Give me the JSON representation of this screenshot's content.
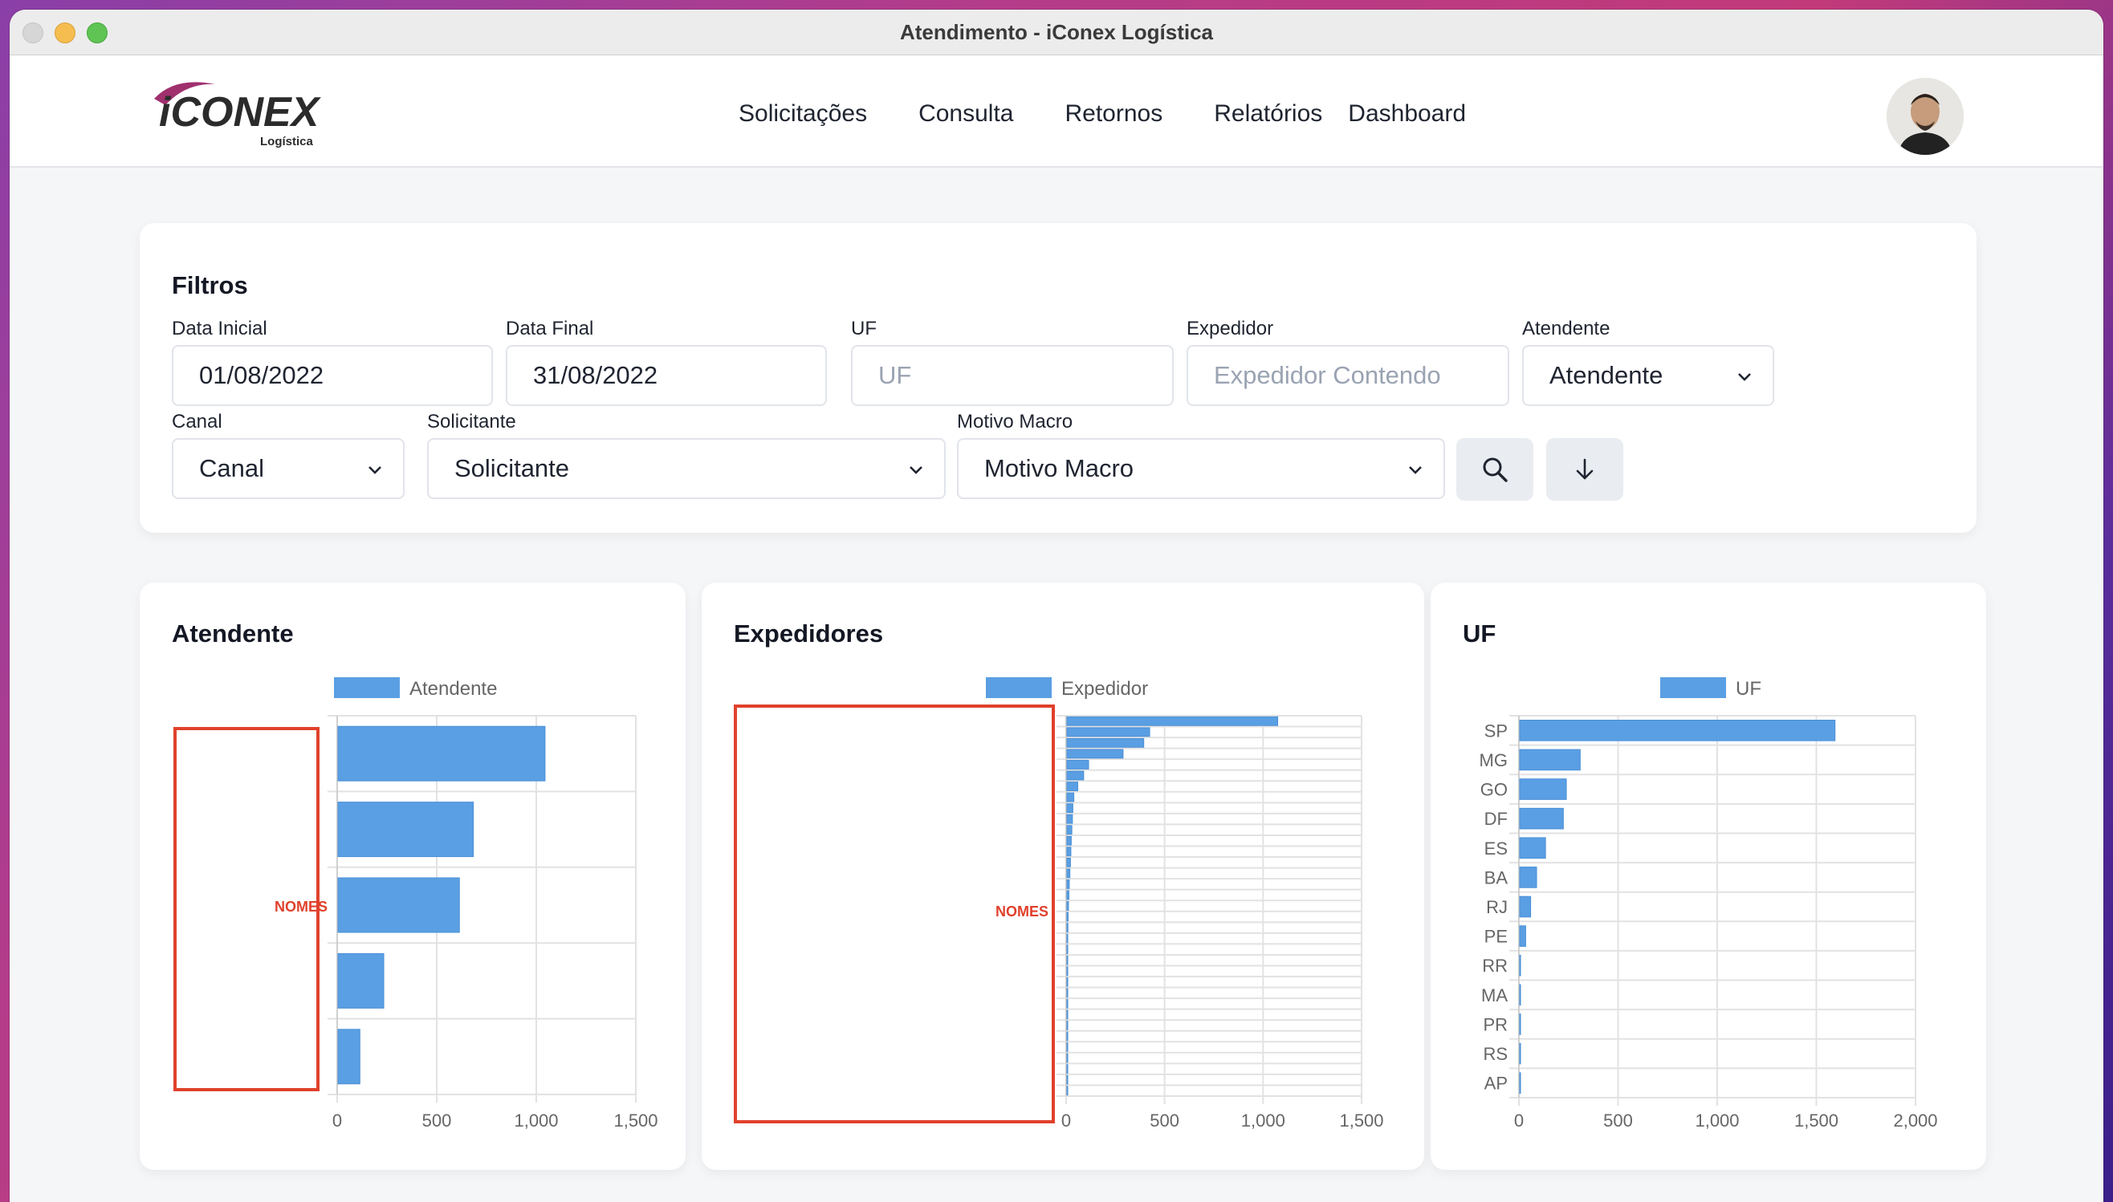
{
  "window": {
    "title": "Atendimento - iConex Logística"
  },
  "nav": {
    "logo_text": "iCONEX",
    "logo_sub": "Logística",
    "links": [
      "Solicitações",
      "Consulta",
      "Retornos",
      "Relatórios",
      "Dashboard"
    ]
  },
  "filters": {
    "title": "Filtros",
    "data_inicial": {
      "label": "Data Inicial",
      "value": "01/08/2022"
    },
    "data_final": {
      "label": "Data Final",
      "value": "31/08/2022"
    },
    "uf": {
      "label": "UF",
      "placeholder": "UF"
    },
    "expedidor": {
      "label": "Expedidor",
      "placeholder": "Expedidor Contendo"
    },
    "atendente": {
      "label": "Atendente",
      "value": "Atendente"
    },
    "canal": {
      "label": "Canal",
      "value": "Canal"
    },
    "solicitante": {
      "label": "Solicitante",
      "value": "Solicitante"
    },
    "motivo_macro": {
      "label": "Motivo Macro",
      "value": "Motivo Macro"
    }
  },
  "colors": {
    "bar": "#5a9fe3",
    "redact": "#e0412c"
  },
  "chart_data": [
    {
      "type": "bar",
      "orientation": "horizontal",
      "title": "Atendente",
      "legend": "Atendente",
      "redaction_label": "NOMES",
      "xlim": [
        0,
        1500
      ],
      "xticks": [
        "0",
        "500",
        "1,000",
        "1,500"
      ],
      "grid": true,
      "values": [
        1040,
        680,
        610,
        230,
        110
      ]
    },
    {
      "type": "bar",
      "orientation": "horizontal",
      "title": "Expedidores",
      "legend": "Expedidor",
      "redaction_label": "NOMES",
      "xlim": [
        0,
        1500
      ],
      "xticks": [
        "0",
        "500",
        "1,000",
        "1,500"
      ],
      "grid": true,
      "values": [
        1070,
        420,
        390,
        285,
        110,
        85,
        55,
        35,
        30,
        28,
        25,
        22,
        20,
        18,
        15,
        12,
        10,
        8,
        6,
        5,
        4,
        3,
        3,
        2,
        2,
        2,
        2,
        2,
        1,
        1,
        1,
        1,
        1,
        1,
        1
      ]
    },
    {
      "type": "bar",
      "orientation": "horizontal",
      "title": "UF",
      "legend": "UF",
      "xlim": [
        0,
        2000
      ],
      "xticks": [
        "0",
        "500",
        "1,000",
        "1,500",
        "2,000"
      ],
      "grid": true,
      "categories": [
        "SP",
        "MG",
        "GO",
        "DF",
        "ES",
        "BA",
        "RJ",
        "PE",
        "RR",
        "MA",
        "PR",
        "RS",
        "AP"
      ],
      "values": [
        1590,
        305,
        235,
        220,
        130,
        85,
        55,
        30,
        2,
        4,
        4,
        3,
        2
      ]
    }
  ]
}
